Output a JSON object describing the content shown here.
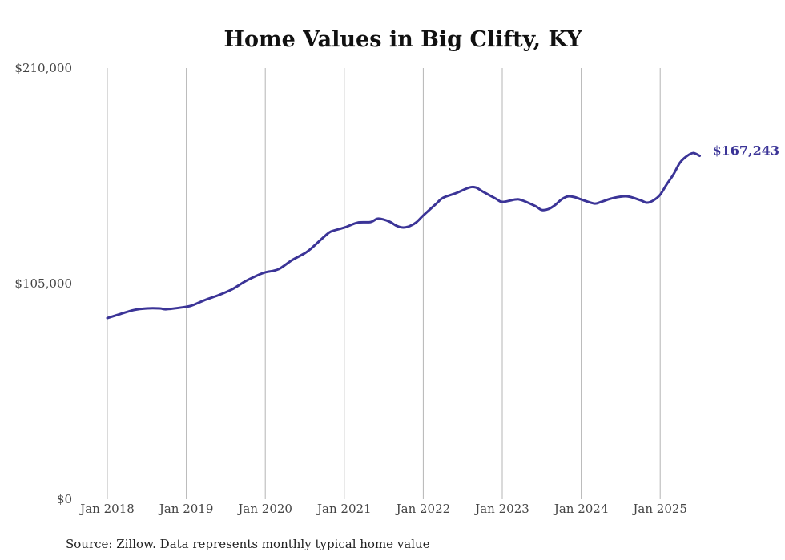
{
  "chart_data": {
    "type": "line",
    "title": "Home Values in Big Clifty, KY",
    "xlabel": "",
    "ylabel": "",
    "ylim": [
      0,
      210000
    ],
    "y_ticks": [
      0,
      105000,
      210000
    ],
    "y_tick_labels": [
      "$0",
      "$105,000",
      "$210,000"
    ],
    "x_ticks": [
      2018,
      2019,
      2020,
      2021,
      2022,
      2023,
      2024,
      2025
    ],
    "x_tick_labels": [
      "Jan 2018",
      "Jan 2019",
      "Jan 2020",
      "Jan 2021",
      "Jan 2022",
      "Jan 2023",
      "Jan 2024",
      "Jan 2025"
    ],
    "grid": "vertical",
    "legend": "none",
    "line_color": "#3b3497",
    "end_label": "$167,243",
    "series": [
      {
        "name": "Typical home value",
        "x": [
          "2018-01",
          "2018-03",
          "2018-05",
          "2018-07",
          "2018-09",
          "2018-10",
          "2019-01",
          "2019-02",
          "2019-04",
          "2019-06",
          "2019-08",
          "2019-10",
          "2019-12",
          "2020-01",
          "2020-03",
          "2020-05",
          "2020-07",
          "2020-08",
          "2020-10",
          "2020-11",
          "2021-01",
          "2021-03",
          "2021-05",
          "2021-06",
          "2021-07",
          "2021-08",
          "2021-09",
          "2021-10",
          "2021-11",
          "2021-12",
          "2022-01",
          "2022-03",
          "2022-04",
          "2022-06",
          "2022-08",
          "2022-09",
          "2022-10",
          "2022-12",
          "2023-01",
          "2023-03",
          "2023-04",
          "2023-06",
          "2023-07",
          "2023-08",
          "2023-09",
          "2023-10",
          "2023-11",
          "2023-12",
          "2024-01",
          "2024-03",
          "2024-04",
          "2024-06",
          "2024-08",
          "2024-10",
          "2024-11",
          "2024-12",
          "2025-01",
          "2025-02",
          "2025-03",
          "2025-04",
          "2025-05",
          "2025-06",
          "2025-07"
        ],
        "values": [
          88200,
          90200,
          92100,
          92900,
          92900,
          92500,
          93700,
          94500,
          97200,
          99500,
          102300,
          106200,
          109300,
          110500,
          112000,
          116300,
          119800,
          122200,
          128000,
          130400,
          132300,
          134700,
          135000,
          136600,
          136200,
          135000,
          133100,
          132300,
          133100,
          135000,
          138200,
          144000,
          146800,
          149100,
          151800,
          151800,
          149900,
          146400,
          144800,
          146000,
          145600,
          142800,
          140900,
          141300,
          143200,
          146000,
          147500,
          147100,
          146000,
          144000,
          144800,
          146800,
          147500,
          145600,
          144400,
          145600,
          148300,
          153400,
          158100,
          163900,
          167000,
          168600,
          167243
        ]
      }
    ]
  },
  "source_note": "Source: Zillow. Data represents monthly typical home value"
}
